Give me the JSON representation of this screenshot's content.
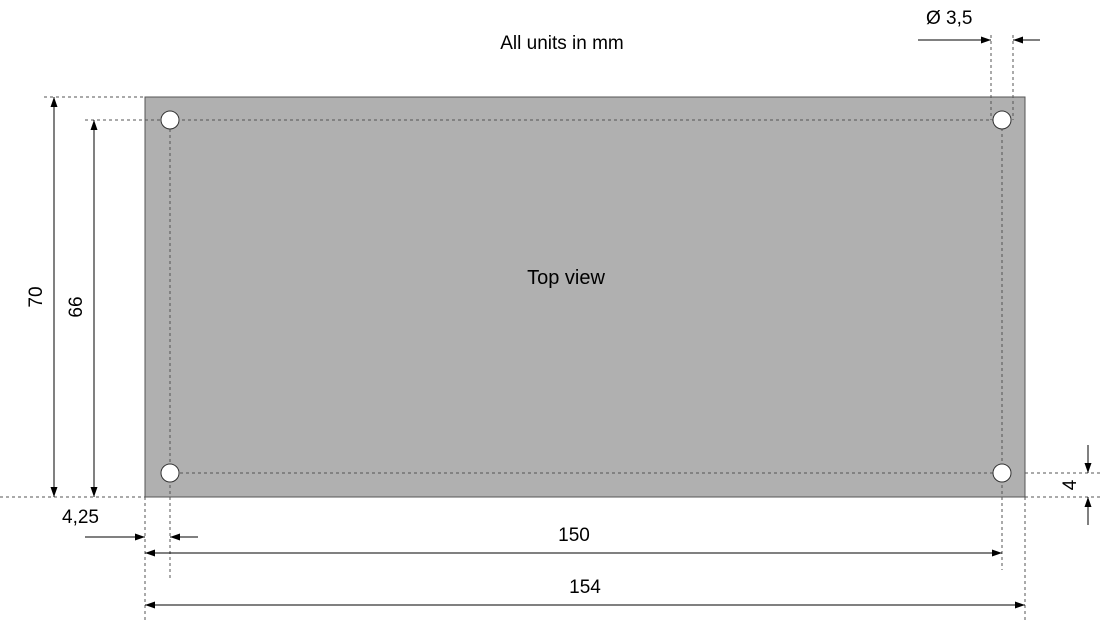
{
  "title": "All units in mm",
  "board_label": "Top view",
  "colors": {
    "board_fill": "#b0b0b0",
    "board_stroke": "#555555",
    "line": "#000000",
    "hole_fill": "#ffffff"
  },
  "dimensions": {
    "hole_diameter": "Ø 3,5",
    "board_height": "70",
    "hole_spacing_vertical": "66",
    "hole_offset_horizontal": "4,25",
    "hole_offset_vertical": "4",
    "hole_spacing_horizontal": "150",
    "board_width": "154"
  },
  "holes": [
    "top-left",
    "top-right",
    "bottom-left",
    "bottom-right"
  ]
}
